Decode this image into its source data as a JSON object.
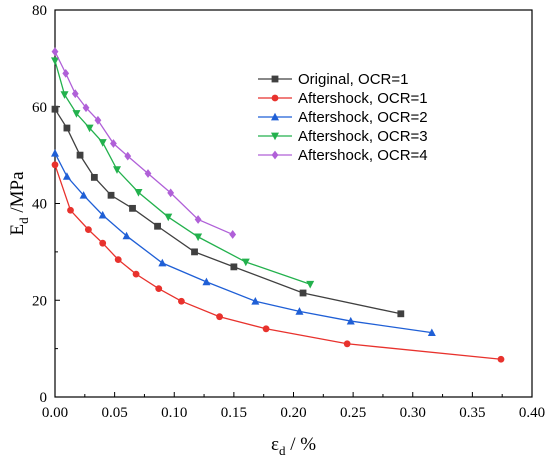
{
  "chart_data": {
    "type": "line",
    "xlabel": {
      "main": "ε",
      "sub": "d",
      "rest": " / %"
    },
    "ylabel": {
      "main": "E",
      "sub": "d",
      "rest": " /MPa"
    },
    "xlim": [
      0,
      0.4
    ],
    "ylim": [
      0,
      80
    ],
    "xticks": [
      {
        "value": 0.0,
        "label": "0.00"
      },
      {
        "value": 0.05,
        "label": "0.05"
      },
      {
        "value": 0.1,
        "label": "0.10"
      },
      {
        "value": 0.15,
        "label": "0.15"
      },
      {
        "value": 0.2,
        "label": "0.20"
      },
      {
        "value": 0.25,
        "label": "0.25"
      },
      {
        "value": 0.3,
        "label": "0.30"
      },
      {
        "value": 0.35,
        "label": "0.35"
      },
      {
        "value": 0.4,
        "label": "0.40"
      }
    ],
    "yticks": [
      {
        "value": 0,
        "label": "0"
      },
      {
        "value": 20,
        "label": "20"
      },
      {
        "value": 40,
        "label": "40"
      },
      {
        "value": 60,
        "label": "60"
      },
      {
        "value": 80,
        "label": "80"
      }
    ],
    "grid": false,
    "legend_position": "upper-right",
    "series": [
      {
        "name": "Original, OCR=1",
        "color": "#404040",
        "marker": "square",
        "x": [
          0.0,
          0.01,
          0.021,
          0.033,
          0.047,
          0.065,
          0.086,
          0.117,
          0.15,
          0.208,
          0.29
        ],
        "y": [
          59.5,
          55.6,
          50.0,
          45.4,
          41.7,
          39.0,
          35.3,
          30.0,
          26.9,
          21.5,
          17.2
        ]
      },
      {
        "name": "Aftershock, OCR=1",
        "color": "#e8322d",
        "marker": "circle",
        "x": [
          0.0,
          0.013,
          0.028,
          0.04,
          0.053,
          0.068,
          0.087,
          0.106,
          0.138,
          0.177,
          0.245,
          0.374
        ],
        "y": [
          48.0,
          38.6,
          34.6,
          31.8,
          28.4,
          25.4,
          22.4,
          19.8,
          16.6,
          14.1,
          11.0,
          7.8
        ]
      },
      {
        "name": "Aftershock, OCR=2",
        "color": "#1f5fd6",
        "marker": "triangle-up",
        "x": [
          0.0,
          0.01,
          0.024,
          0.04,
          0.06,
          0.09,
          0.127,
          0.168,
          0.205,
          0.248,
          0.316
        ],
        "y": [
          50.4,
          45.6,
          41.7,
          37.6,
          33.3,
          27.7,
          23.8,
          19.8,
          17.7,
          15.7,
          13.3
        ]
      },
      {
        "name": "Aftershock, OCR=3",
        "color": "#23b14d",
        "marker": "triangle-down",
        "x": [
          0.0,
          0.008,
          0.018,
          0.029,
          0.04,
          0.052,
          0.07,
          0.095,
          0.12,
          0.16,
          0.214
        ],
        "y": [
          69.5,
          62.5,
          58.6,
          55.6,
          52.6,
          47.0,
          42.3,
          37.2,
          33.1,
          27.9,
          23.3
        ]
      },
      {
        "name": "Aftershock, OCR=4",
        "color": "#b060d8",
        "marker": "diamond",
        "x": [
          0.0,
          0.009,
          0.017,
          0.026,
          0.036,
          0.049,
          0.061,
          0.078,
          0.097,
          0.12,
          0.149
        ],
        "y": [
          71.4,
          66.9,
          62.7,
          59.8,
          57.2,
          52.4,
          49.8,
          46.2,
          42.2,
          36.7,
          33.6
        ]
      }
    ]
  }
}
